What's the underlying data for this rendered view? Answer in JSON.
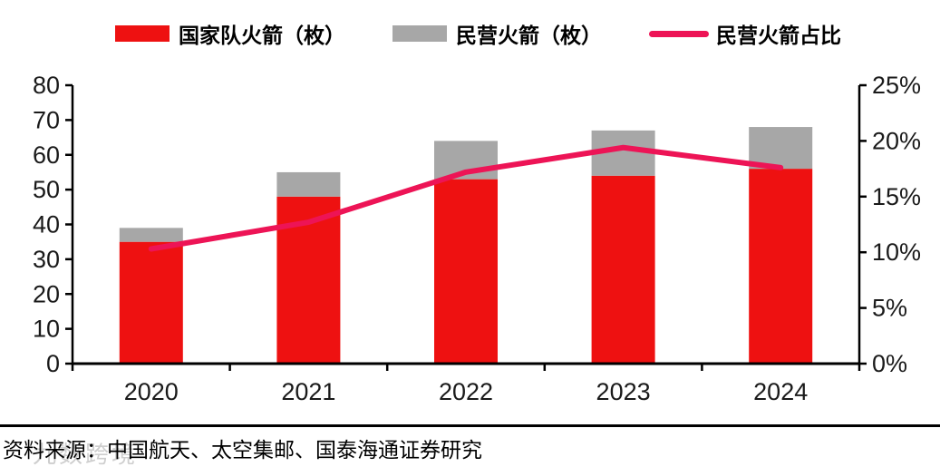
{
  "chart_data": {
    "type": "bar",
    "subtype": "stacked-bars-with-line-overlay",
    "categories": [
      "2020",
      "2021",
      "2022",
      "2023",
      "2024"
    ],
    "series": [
      {
        "name": "国家队火箭（枚）",
        "type": "bar",
        "stack": "rockets",
        "color": "#ee1111",
        "axis": "left",
        "values": [
          35,
          48,
          53,
          54,
          56
        ]
      },
      {
        "name": "民营火箭（枚）",
        "type": "bar",
        "stack": "rockets",
        "color": "#a7a7a7",
        "axis": "left",
        "values": [
          4,
          7,
          11,
          13,
          12
        ]
      },
      {
        "name": "民营火箭占比",
        "type": "line",
        "color": "#ed1456",
        "axis": "right",
        "values": [
          10.3,
          12.7,
          17.2,
          19.4,
          17.6
        ]
      }
    ],
    "left_axis": {
      "min": 0,
      "max": 80,
      "step": 10,
      "tick_labels": [
        "0",
        "10",
        "20",
        "30",
        "40",
        "50",
        "60",
        "70",
        "80"
      ]
    },
    "right_axis": {
      "min": 0,
      "max": 25,
      "step": 5,
      "suffix": "%",
      "tick_labels": [
        "0%",
        "5%",
        "10%",
        "15%",
        "20%",
        "25%"
      ]
    },
    "grid": false,
    "legend_position": "top",
    "axis_color": "#000000",
    "tick_label_color": "#1a1a1a"
  },
  "footer": {
    "source": "资料来源：中国航天、太空集邮、国泰海通证券研究",
    "watermark": "九数跨境"
  }
}
